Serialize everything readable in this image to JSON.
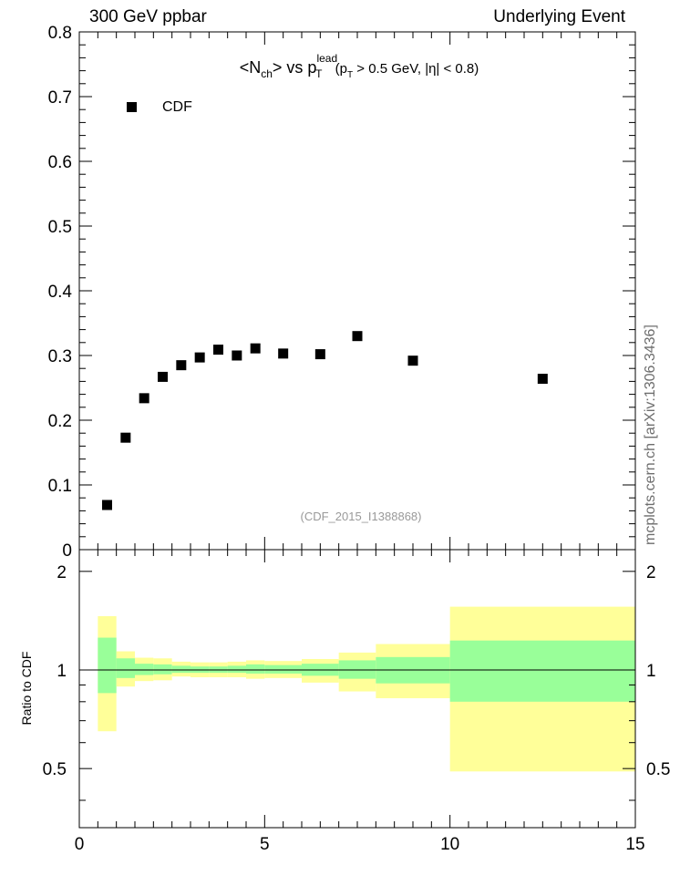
{
  "header": {
    "left": "300 GeV ppbar",
    "right": "Underlying Event"
  },
  "side_label": "mcplots.cern.ch [arXiv:1306.3436]",
  "chart_data": {
    "type": "scatter",
    "title_parts": {
      "main": "<N",
      "sub1": "ch",
      "mid": "> vs p",
      "sup": "lead",
      "sub2": "T",
      "tail1": " (p",
      "sub3": "T",
      "tail2": " > 0.5 GeV, |η| < 0.8)"
    },
    "reference_label": "(CDF_2015_I1388868)",
    "legend": [
      {
        "name": "CDF",
        "marker": "square",
        "color": "#000000"
      }
    ],
    "main": {
      "xlim": [
        0,
        15
      ],
      "ylim": [
        0,
        0.8
      ],
      "yticks": [
        "0",
        "0.1",
        "0.2",
        "0.3",
        "0.4",
        "0.5",
        "0.6",
        "0.7",
        "0.8"
      ],
      "ytick_values": [
        0,
        0.1,
        0.2,
        0.3,
        0.4,
        0.5,
        0.6,
        0.7,
        0.8
      ],
      "series": [
        {
          "name": "CDF",
          "x": [
            0.75,
            1.25,
            1.75,
            2.25,
            2.75,
            3.25,
            3.75,
            4.25,
            4.75,
            5.5,
            6.5,
            7.5,
            9.0,
            12.5
          ],
          "y": [
            0.069,
            0.173,
            0.234,
            0.267,
            0.285,
            0.297,
            0.309,
            0.3,
            0.311,
            0.303,
            0.302,
            0.33,
            0.292,
            0.264
          ]
        }
      ]
    },
    "ratio": {
      "ylabel": "Ratio to CDF",
      "ylim": [
        0.33,
        2.33
      ],
      "ytick_labels": [
        "0.5",
        "1",
        "2"
      ],
      "ytick_values": [
        0.5,
        1,
        2
      ],
      "xticks": [
        "0",
        "5",
        "10",
        "15"
      ],
      "xtick_values": [
        0,
        5,
        10,
        15
      ],
      "bins": [
        {
          "lo": 0.5,
          "hi": 1.0,
          "stat_lo": 0.85,
          "stat_hi": 1.255,
          "tot_lo": 0.65,
          "tot_hi": 1.46
        },
        {
          "lo": 1.0,
          "hi": 1.5,
          "stat_lo": 0.945,
          "stat_hi": 1.085,
          "tot_lo": 0.89,
          "tot_hi": 1.14
        },
        {
          "lo": 1.5,
          "hi": 2.0,
          "stat_lo": 0.965,
          "stat_hi": 1.045,
          "tot_lo": 0.925,
          "tot_hi": 1.09
        },
        {
          "lo": 2.0,
          "hi": 2.5,
          "stat_lo": 0.97,
          "stat_hi": 1.04,
          "tot_lo": 0.93,
          "tot_hi": 1.085
        },
        {
          "lo": 2.5,
          "hi": 3.0,
          "stat_lo": 0.98,
          "stat_hi": 1.03,
          "tot_lo": 0.955,
          "tot_hi": 1.06
        },
        {
          "lo": 3.0,
          "hi": 3.5,
          "stat_lo": 0.98,
          "stat_hi": 1.025,
          "tot_lo": 0.95,
          "tot_hi": 1.055
        },
        {
          "lo": 3.5,
          "hi": 4.0,
          "stat_lo": 0.98,
          "stat_hi": 1.025,
          "tot_lo": 0.95,
          "tot_hi": 1.055
        },
        {
          "lo": 4.0,
          "hi": 4.5,
          "stat_lo": 0.98,
          "stat_hi": 1.03,
          "tot_lo": 0.95,
          "tot_hi": 1.06
        },
        {
          "lo": 4.5,
          "hi": 5.0,
          "stat_lo": 0.975,
          "stat_hi": 1.04,
          "tot_lo": 0.94,
          "tot_hi": 1.07
        },
        {
          "lo": 5.0,
          "hi": 6.0,
          "stat_lo": 0.975,
          "stat_hi": 1.035,
          "tot_lo": 0.945,
          "tot_hi": 1.065
        },
        {
          "lo": 6.0,
          "hi": 7.0,
          "stat_lo": 0.96,
          "stat_hi": 1.045,
          "tot_lo": 0.915,
          "tot_hi": 1.08
        },
        {
          "lo": 7.0,
          "hi": 8.0,
          "stat_lo": 0.94,
          "stat_hi": 1.07,
          "tot_lo": 0.86,
          "tot_hi": 1.13
        },
        {
          "lo": 8.0,
          "hi": 10.0,
          "stat_lo": 0.91,
          "stat_hi": 1.095,
          "tot_lo": 0.82,
          "tot_hi": 1.2
        },
        {
          "lo": 10.0,
          "hi": 15.0,
          "stat_lo": 0.8,
          "stat_hi": 1.23,
          "tot_lo": 0.49,
          "tot_hi": 1.56
        }
      ]
    },
    "colors": {
      "stat_band": "#99ff99",
      "total_band": "#ffff99",
      "marker": "#000000",
      "axis": "#000000",
      "reference_label": "#999999"
    }
  }
}
